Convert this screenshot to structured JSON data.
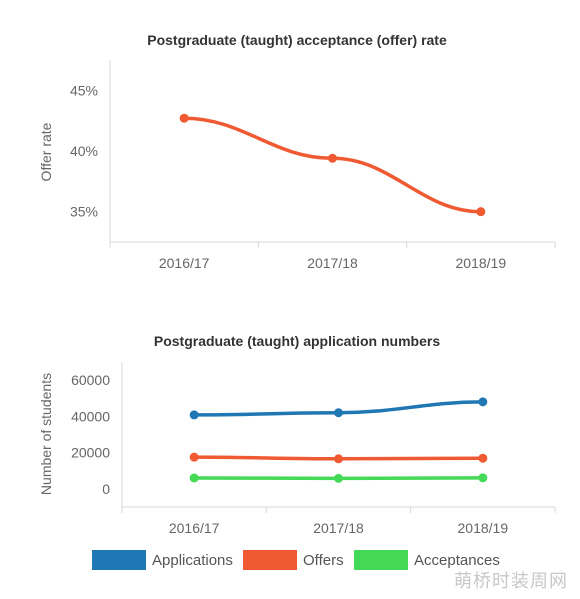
{
  "chart_data": [
    {
      "type": "line",
      "title": "Postgraduate (taught) acceptance (offer) rate",
      "ylabel": "Offer rate",
      "xlabel": "",
      "categories": [
        "2016/17",
        "2017/18",
        "2018/19"
      ],
      "ylim": [
        32.5,
        47.5
      ],
      "yticks": [
        35,
        40,
        45
      ],
      "ytick_labels": [
        "35%",
        "40%",
        "45%"
      ],
      "grid": false,
      "series": [
        {
          "values": [
            42.7,
            39.4,
            35.0
          ],
          "color": "#f05a33"
        }
      ]
    },
    {
      "type": "line",
      "title": "Postgraduate (taught) application numbers",
      "ylabel": "Number of students",
      "xlabel": "",
      "categories": [
        "2016/17",
        "2017/18",
        "2018/19"
      ],
      "ylim": [
        -10000,
        70000
      ],
      "yticks": [
        0,
        20000,
        40000,
        60000
      ],
      "ytick_labels": [
        "0",
        "20000",
        "40000",
        "60000"
      ],
      "grid": false,
      "legend": "bottom",
      "series": [
        {
          "name": "Applications",
          "values": [
            40800,
            42000,
            48000
          ],
          "color": "#1f77b4"
        },
        {
          "name": "Offers",
          "values": [
            17500,
            16600,
            16900
          ],
          "color": "#f05a33"
        },
        {
          "name": "Acceptances",
          "values": [
            6000,
            5800,
            6100
          ],
          "color": "#44d956"
        }
      ]
    }
  ],
  "watermark": "萌桥时装周网"
}
